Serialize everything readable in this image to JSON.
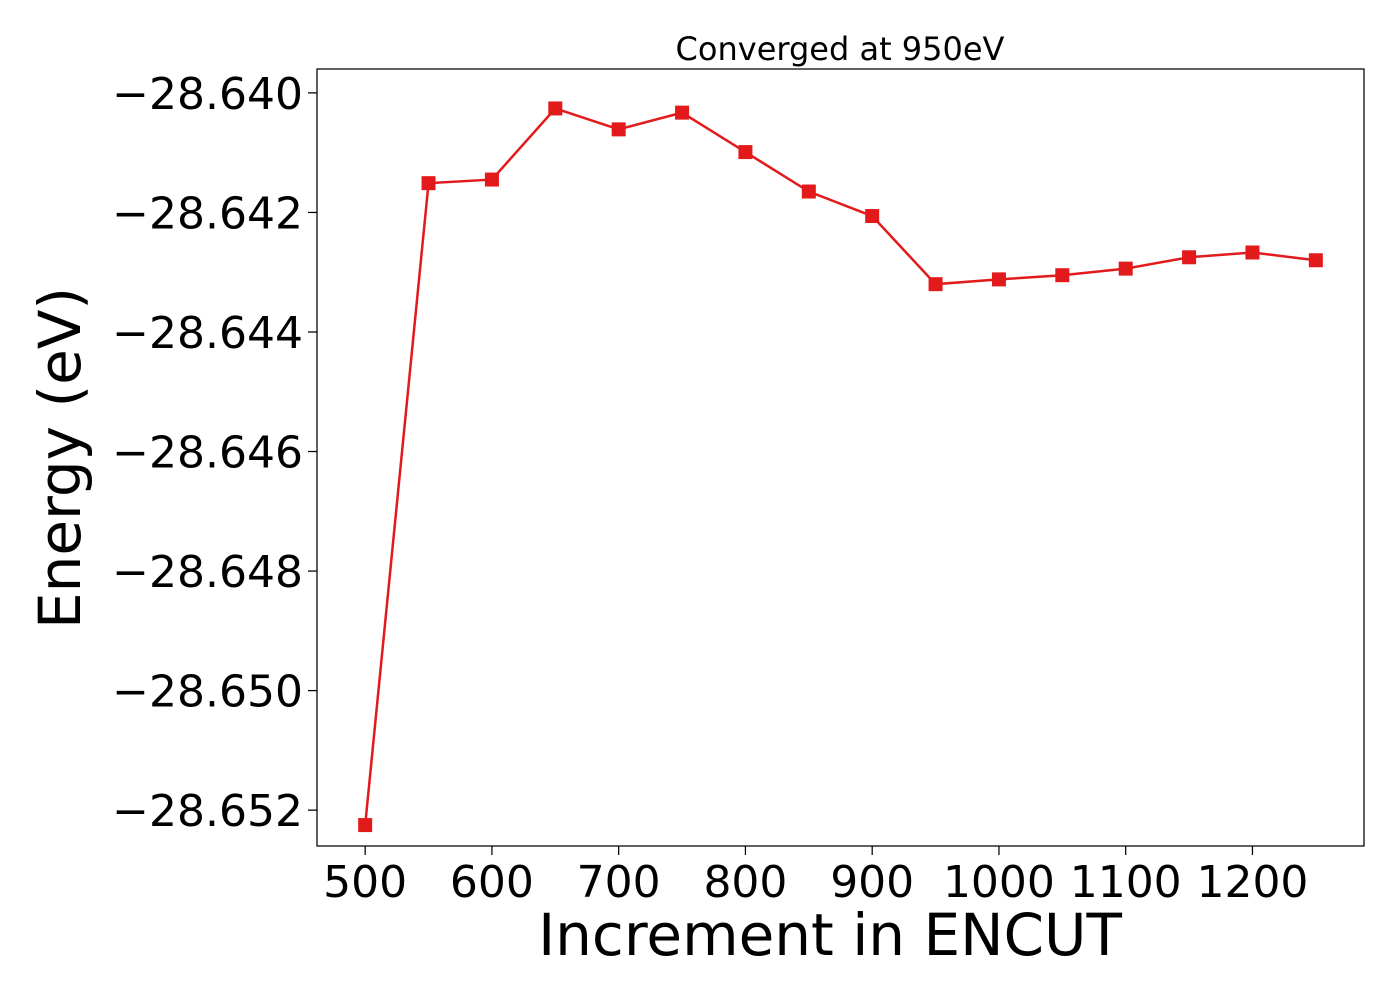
{
  "chart_data": {
    "type": "line",
    "title": "Converged at 950eV",
    "xlabel": "Increment in ENCUT",
    "ylabel": "Energy (eV)",
    "x": [
      500,
      550,
      600,
      650,
      700,
      750,
      800,
      850,
      900,
      950,
      1000,
      1050,
      1100,
      1150,
      1200,
      1250
    ],
    "series": [
      {
        "values": [
          -28.65225,
          -28.64151,
          -28.64145,
          -28.64026,
          -28.64061,
          -28.64033,
          -28.64099,
          -28.64165,
          -28.64206,
          -28.6432,
          -28.64312,
          -28.64305,
          -28.64294,
          -28.64275,
          -28.64267,
          -28.6428
        ],
        "color": "#e31a1c",
        "marker": "square"
      }
    ],
    "xticks": [
      500,
      600,
      700,
      800,
      900,
      1000,
      1100,
      1200
    ],
    "xtick_labels": [
      "500",
      "600",
      "700",
      "800",
      "900",
      "1000",
      "1100",
      "1200"
    ],
    "yticks": [
      -28.64,
      -28.642,
      -28.644,
      -28.646,
      -28.648,
      -28.65,
      -28.652
    ],
    "ytick_labels": [
      "−28.640",
      "−28.642",
      "−28.644",
      "−28.646",
      "−28.648",
      "−28.650",
      "−28.652"
    ],
    "xlim": [
      462,
      1288
    ],
    "ylim": [
      -28.6526,
      -28.6396
    ],
    "grid": false,
    "legend": "none"
  }
}
